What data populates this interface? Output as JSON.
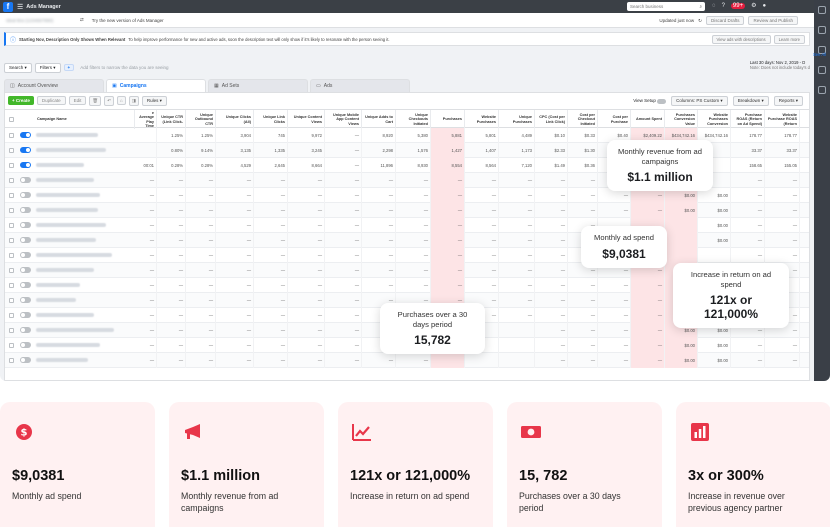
{
  "topbar": {
    "app_title": "Ads Manager",
    "search_placeholder": "Search business",
    "badge_count": "99+"
  },
  "subbar": {
    "account_blurred": "Ideal Bra (1234567890)",
    "try_new": "Try the new version of Ads Manager",
    "updated": "Updated just now",
    "discard": "Discard Drafts",
    "review": "Review and Publish"
  },
  "notice": {
    "title": "Starting Nov, Description Only Shows When Relevant",
    "text": "To help improve performance for new and active ads, soon the description text will only show if it's likely to resonate with the person seeing it.",
    "btn_view": "View ads with descriptions",
    "btn_learn": "Learn more",
    "see_all": "See All"
  },
  "filterbar": {
    "search": "Search",
    "filters": "Filters",
    "hint": "Add filters to narrow the data you are seeing",
    "date_range": "Last 30 days: Nov 2, 2019 - D",
    "date_note": "Note: Does not include today's d"
  },
  "tabs": [
    {
      "label": "Account Overview",
      "icon": "overview-icon"
    },
    {
      "label": "Campaigns",
      "icon": "folder-icon"
    },
    {
      "label": "Ad Sets",
      "icon": "grid-icon"
    },
    {
      "label": "Ads",
      "icon": "ad-icon"
    }
  ],
  "actionbar": {
    "create": "+ Create",
    "duplicate": "Duplicate",
    "edit": "Edit",
    "rules": "Rules",
    "view_setup": "View Setup",
    "columns": "Columns: PS Custom",
    "breakdown": "Breakdown",
    "reports": "Reports"
  },
  "table": {
    "columns": [
      "Campaign Name",
      "e Average Play Time",
      "Unique CTR (Link Click-",
      "Unique Outbound CTR",
      "Unique Clicks (All)",
      "Unique Link Clicks",
      "Unique Content Views",
      "Unique Mobile App Content Views",
      "Unique Adds to Cart",
      "Unique Checkouts Initiated",
      "Purchases",
      "Website Purchases",
      "Unique Purchases",
      "CPC (Cost per Link Click)",
      "Cost per Checkout Initiated",
      "Cost per Purchase",
      "Amount Spent",
      "Purchases Conversion Value",
      "Website Purchases Conversion",
      "Purchase ROAS (Return on Ad Spend)",
      "Website Purchase ROAS (Return",
      "Frequency"
    ],
    "rows": [
      {
        "on": true,
        "cells": [
          "",
          "1.25%",
          "1.25%",
          "3,904",
          "745",
          "9,972",
          "—",
          "8,920",
          "5,380",
          "5,881",
          "5,801",
          "4,489",
          "$0.10",
          "$0.33",
          "$0.40",
          "$2,409.22",
          "$434,742.16",
          "$434,742.16",
          "178.77",
          "178.77",
          "4.36"
        ]
      },
      {
        "on": true,
        "cells": [
          "",
          "0.80%",
          "9.14%",
          "3,135",
          "1,335",
          "3,245",
          "—",
          "2,298",
          "1,576",
          "1,427",
          "1,407",
          "1,173",
          "$2.33",
          "$1.30",
          "$2.10",
          "",
          "",
          "",
          "33.37",
          "33.37",
          "1.82"
        ]
      },
      {
        "on": true,
        "cells": [
          "00:01",
          "0.28%",
          "0.28%",
          "4,529",
          "2,645",
          "8,664",
          "—",
          "11,896",
          "8,930",
          "8,554",
          "8,564",
          "7,120",
          "$1.49",
          "$0.36",
          "$0.46",
          "",
          "",
          "",
          "158.65",
          "155.05",
          "1.46"
        ]
      },
      {
        "on": false,
        "cells": [
          "—",
          "—",
          "—",
          "—",
          "—",
          "—",
          "—",
          "—",
          "—",
          "—",
          "—",
          "—",
          "—",
          "—",
          "—",
          "",
          "",
          "",
          "—",
          "—",
          "—"
        ]
      },
      {
        "on": false,
        "cells": [
          "—",
          "—",
          "—",
          "—",
          "—",
          "—",
          "—",
          "—",
          "—",
          "—",
          "—",
          "—",
          "—",
          "—",
          "—",
          "—",
          "$0.00",
          "$0.00",
          "—",
          "—",
          "—"
        ]
      },
      {
        "on": false,
        "cells": [
          "—",
          "—",
          "—",
          "—",
          "—",
          "—",
          "—",
          "—",
          "—",
          "—",
          "—",
          "—",
          "—",
          "—",
          "—",
          "—",
          "$0.00",
          "$0.00",
          "—",
          "—",
          "—"
        ]
      },
      {
        "on": false,
        "cells": [
          "—",
          "—",
          "—",
          "—",
          "—",
          "—",
          "—",
          "—",
          "—",
          "—",
          "—",
          "—",
          "—",
          "—",
          "",
          "",
          "",
          "$0.00",
          "—",
          "—",
          "—"
        ]
      },
      {
        "on": false,
        "cells": [
          "—",
          "—",
          "—",
          "—",
          "—",
          "—",
          "—",
          "—",
          "—",
          "—",
          "—",
          "—",
          "—",
          "—",
          "",
          "",
          "",
          "$0.00",
          "—",
          "—",
          "—"
        ]
      },
      {
        "on": false,
        "cells": [
          "—",
          "—",
          "—",
          "—",
          "—",
          "—",
          "—",
          "—",
          "—",
          "—",
          "—",
          "—",
          "—",
          "—",
          "",
          "",
          "",
          "",
          "—",
          "—",
          "—"
        ]
      },
      {
        "on": false,
        "cells": [
          "—",
          "—",
          "—",
          "—",
          "—",
          "—",
          "—",
          "—",
          "—",
          "—",
          "—",
          "—",
          "—",
          "—",
          "—",
          "—",
          "—",
          "",
          "",
          "—",
          "—"
        ]
      },
      {
        "on": false,
        "cells": [
          "—",
          "—",
          "—",
          "—",
          "—",
          "—",
          "—",
          "—",
          "—",
          "—",
          "—",
          "—",
          "—",
          "—",
          "—",
          "—",
          "$0.00",
          "$0.00",
          "",
          "",
          "—"
        ]
      },
      {
        "on": false,
        "cells": [
          "—",
          "—",
          "—",
          "—",
          "—",
          "—",
          "—",
          "—",
          "—",
          "—",
          "—",
          "—",
          "—",
          "—",
          "—",
          "—",
          "$0.00",
          "$0.00",
          "",
          "",
          "—"
        ]
      },
      {
        "on": false,
        "cells": [
          "—",
          "—",
          "—",
          "—",
          "—",
          "—",
          "—",
          "—",
          "—",
          "—",
          "—",
          "—",
          "—",
          "—",
          "—",
          "—",
          "$0.00",
          "$0.00",
          "—",
          "—",
          "—"
        ]
      },
      {
        "on": false,
        "cells": [
          "—",
          "—",
          "—",
          "—",
          "—",
          "—",
          "—",
          "—",
          "—",
          "",
          "",
          "",
          "—",
          "—",
          "—",
          "—",
          "$0.00",
          "$0.00",
          "—",
          "—",
          "—"
        ]
      },
      {
        "on": false,
        "cells": [
          "—",
          "—",
          "—",
          "—",
          "—",
          "—",
          "—",
          "—",
          "—",
          "",
          "",
          "",
          "—",
          "—",
          "—",
          "—",
          "$0.00",
          "$0.00",
          "—",
          "—",
          "—"
        ]
      },
      {
        "on": false,
        "cells": [
          "—",
          "—",
          "—",
          "—",
          "—",
          "—",
          "—",
          "—",
          "—",
          "",
          "",
          "",
          "—",
          "—",
          "—",
          "—",
          "$0.00",
          "$0.00",
          "—",
          "—",
          "—"
        ]
      }
    ]
  },
  "callouts": {
    "revenue": {
      "label": "Monthly revenue from ad campaigns",
      "value": "$1.1 million"
    },
    "spend": {
      "label": "Monthly ad spend",
      "value": "$9,0381"
    },
    "roas": {
      "label": "Increase in return on ad spend",
      "value": "121x or 121,000%"
    },
    "purchases": {
      "label": "Purchases over a 30 days period",
      "value": "15,782"
    }
  },
  "cards": [
    {
      "icon": "dollar-icon",
      "value": "$9,0381",
      "label": "Monthly ad spend"
    },
    {
      "icon": "megaphone-icon",
      "value": "$1.1 million",
      "label": "Monthly revenue from ad campaigns"
    },
    {
      "icon": "trend-up-icon",
      "value": "121x or 121,000%",
      "label": "Increase in return on ad spend"
    },
    {
      "icon": "cash-icon",
      "value": "15, 782",
      "label": "Purchases over a 30 days period"
    },
    {
      "icon": "bar-chart-icon",
      "value": "3x or 300%",
      "label": "Increase in revenue over previous agency partner"
    }
  ],
  "colors": {
    "accent": "#e8364a",
    "fb_blue": "#1877f2",
    "card_bg": "#fff1f2",
    "highlight": "#fde4e6"
  }
}
